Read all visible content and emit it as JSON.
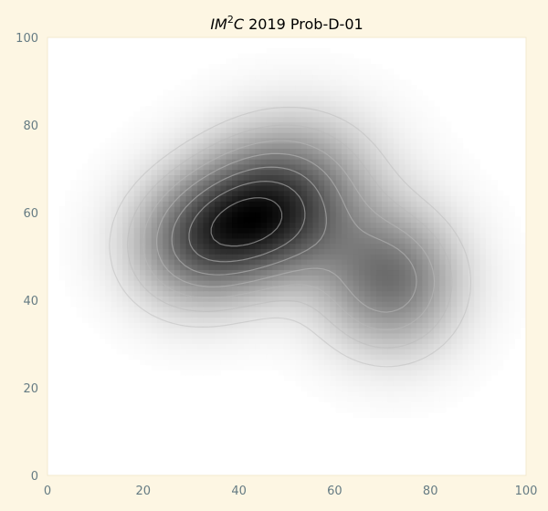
{
  "chart_data": {
    "type": "heatmap",
    "title": {
      "prefix": "IM",
      "superscript": "2",
      "suffix": "C",
      "rest": " 2019 Prob-D-01"
    },
    "xlabel": "",
    "ylabel": "",
    "xlim": [
      0,
      100
    ],
    "ylim": [
      0,
      100
    ],
    "x_ticks": [
      "0",
      "20",
      "40",
      "60",
      "80",
      "100"
    ],
    "y_ticks": [
      "0",
      "20",
      "40",
      "60",
      "80",
      "100"
    ],
    "grid": false,
    "colormap": "greys",
    "grid_resolution": 1.2,
    "peaks": [
      {
        "x": 44,
        "y": 58,
        "amplitude": 1.0,
        "sigma_x": 12,
        "sigma_y": 10
      },
      {
        "x": 30,
        "y": 51,
        "amplitude": 0.55,
        "sigma_x": 10,
        "sigma_y": 10
      },
      {
        "x": 71,
        "y": 44,
        "amplitude": 0.72,
        "sigma_x": 10,
        "sigma_y": 11
      },
      {
        "x": 52,
        "y": 70,
        "amplitude": 0.35,
        "sigma_x": 12,
        "sigma_y": 10
      }
    ],
    "contour_levels": [
      0.12,
      0.22,
      0.34,
      0.46,
      0.6,
      0.75,
      0.9
    ],
    "colors": {
      "background": "#fdf6e3",
      "axes_face": "#ffffff",
      "axes_edge": "#f3e9cf",
      "tick_label": "#657b83",
      "contour": "#b8b8b8"
    }
  }
}
